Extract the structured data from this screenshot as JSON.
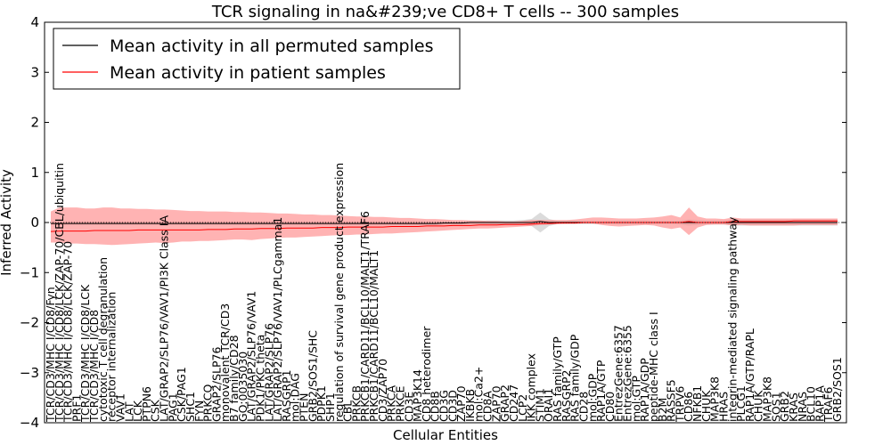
{
  "chart_data": {
    "type": "line",
    "title": "TCR signaling in na&#239;ve CD8+ T cells -- 300 samples",
    "xlabel": "Cellular Entities",
    "ylabel": "Inferred Activity",
    "ylim": [
      -4,
      4
    ],
    "yticks": [
      -4,
      -3,
      -2,
      -1,
      0,
      1,
      2,
      3,
      4
    ],
    "legend": {
      "location": "top-left",
      "entries": [
        {
          "label": "Mean activity in all permuted samples",
          "color": "#000000"
        },
        {
          "label": "Mean activity in patient samples",
          "color": "#ff0000"
        }
      ]
    },
    "categories": [
      "TCR/CD3/MHC I/CD8/Fyn",
      "TCR/CD3/MHC I/CD8/LCK/ZAP-70/CBL/ubiquitin",
      "TCR/CD3/MHC I/CD8/LCK/ZAP-70",
      "PRF1",
      "TCR/CD3/MHC I/CD8/LCK",
      "TCR/CD3/MHC I/CD8",
      "cytotoxic T cell degranulation",
      "receptor internalization",
      "VAV1",
      "LAT",
      "LCK",
      "PTPN6",
      "CSK",
      "LAT/GRAP2/SLP76/VAV1/PI3K Class IA",
      "PAG1",
      "CSK/PAG1",
      "SHC1",
      "FYN",
      "PRKCQ",
      "GRAP2/SLP76",
      "monovalent TCR/CD3",
      "B7 family/CD28",
      "GO:0035030",
      "LAT/GRAP2/SLP76/VAV1",
      "PDK1/PKC theta",
      "LAT/GRAP2/SLP76",
      "LAT/GRAP2/SLP76/VAV1/PLCgamma1",
      "RASGRP1",
      "mol:DAG",
      "PTEN",
      "GRB2/SOS1/SHC",
      "PDPK1",
      "SHP1",
      "regulation of survival gene product expression",
      "CBL",
      "PRKCB",
      "PRKCB1/CARD11/BCL10/MALT1/TRAF6",
      "PRKCB1/CARD11/BCL10/MALT1",
      "CD3/ZAP70",
      "PRKCA",
      "PRKCE",
      "CD3E",
      "MAP3K14",
      "CD8 heterodimer",
      "CD8B",
      "CD3G",
      "CD3D",
      "ZAP70",
      "IKBKB",
      "mol:Ca2+",
      "CD8A",
      "ZAP70",
      "GRAP2",
      "CD247",
      "LCP2",
      "IKK complex",
      "STIM1",
      "ORAI1",
      "RAS family/GTP",
      "RASGRP2",
      "RAS family/GDP",
      "CD28",
      "mol:GDP",
      "RAP1A/GTP",
      "CD80",
      "EntrezGene:6357",
      "EntrezGene:6355",
      "mol:GTP",
      "RAP1A/GDP",
      "peptide-MHC class I",
      "B2M",
      "RASSF5",
      "TRPV6",
      "CD86",
      "NFKB1",
      "CHUK",
      "MAP3K8",
      "HRAS",
      "integrin-mediated signaling pathway",
      "PLCG1",
      "RAP1A/GTP/RAPL",
      "CHUK",
      "MAP3K8",
      "SOS1",
      "GRB2",
      "KRAS",
      "NRAS",
      "BCL10",
      "RAP1A",
      "TRAF6",
      "GRB2/SOS1"
    ],
    "series": [
      {
        "name": "Mean activity in all permuted samples",
        "color": "#000000",
        "band_color": "#999999",
        "values": [
          -0.02,
          -0.02,
          -0.02,
          -0.02,
          -0.02,
          -0.02,
          -0.02,
          -0.02,
          -0.02,
          -0.02,
          -0.02,
          -0.02,
          -0.02,
          -0.02,
          -0.02,
          -0.02,
          -0.02,
          -0.02,
          -0.02,
          -0.02,
          -0.02,
          -0.02,
          -0.02,
          -0.02,
          -0.02,
          -0.02,
          -0.02,
          -0.02,
          -0.02,
          -0.02,
          -0.02,
          -0.02,
          -0.02,
          -0.02,
          -0.02,
          -0.02,
          -0.02,
          -0.02,
          -0.02,
          -0.02,
          -0.02,
          -0.02,
          -0.02,
          -0.02,
          -0.02,
          -0.01,
          -0.01,
          -0.01,
          0,
          0,
          0,
          0,
          0,
          0,
          0,
          0,
          0.02,
          0,
          0,
          0,
          0,
          0,
          0,
          0,
          0,
          0,
          0,
          0,
          0,
          0,
          0,
          0,
          0,
          0,
          0,
          0,
          0,
          0,
          0,
          0,
          0,
          0,
          0,
          0,
          0,
          0,
          0,
          0,
          0,
          0,
          0
        ],
        "lower": [
          -0.05,
          -0.05,
          -0.05,
          -0.05,
          -0.05,
          -0.05,
          -0.05,
          -0.05,
          -0.05,
          -0.05,
          -0.05,
          -0.05,
          -0.05,
          -0.05,
          -0.05,
          -0.05,
          -0.05,
          -0.05,
          -0.05,
          -0.05,
          -0.05,
          -0.05,
          -0.05,
          -0.05,
          -0.05,
          -0.05,
          -0.05,
          -0.05,
          -0.05,
          -0.05,
          -0.05,
          -0.05,
          -0.05,
          -0.05,
          -0.05,
          -0.05,
          -0.05,
          -0.05,
          -0.05,
          -0.05,
          -0.05,
          -0.05,
          -0.05,
          -0.05,
          -0.05,
          -0.04,
          -0.04,
          -0.04,
          -0.03,
          -0.03,
          -0.04,
          -0.04,
          -0.04,
          -0.04,
          -0.05,
          -0.07,
          -0.2,
          -0.07,
          -0.03,
          -0.03,
          -0.03,
          -0.03,
          -0.03,
          -0.03,
          -0.03,
          -0.04,
          -0.04,
          -0.04,
          -0.04,
          -0.03,
          -0.03,
          -0.03,
          -0.04,
          -0.06,
          -0.05,
          -0.04,
          -0.04,
          -0.04,
          -0.06,
          -0.06,
          -0.06,
          -0.06,
          -0.06,
          -0.06,
          -0.06,
          -0.06,
          -0.06,
          -0.06,
          -0.06,
          -0.06,
          -0.06
        ],
        "upper": [
          0.02,
          0.02,
          0.02,
          0.02,
          0.02,
          0.02,
          0.02,
          0.02,
          0.02,
          0.02,
          0.02,
          0.02,
          0.02,
          0.02,
          0.02,
          0.02,
          0.02,
          0.02,
          0.02,
          0.02,
          0.02,
          0.02,
          0.02,
          0.02,
          0.02,
          0.02,
          0.02,
          0.02,
          0.02,
          0.02,
          0.02,
          0.02,
          0.02,
          0.02,
          0.02,
          0.02,
          0.02,
          0.02,
          0.02,
          0.02,
          0.02,
          0.02,
          0.02,
          0.02,
          0.02,
          0.02,
          0.02,
          0.02,
          0.03,
          0.03,
          0.04,
          0.04,
          0.04,
          0.04,
          0.05,
          0.07,
          0.2,
          0.07,
          0.03,
          0.03,
          0.03,
          0.03,
          0.03,
          0.03,
          0.03,
          0.04,
          0.04,
          0.04,
          0.04,
          0.03,
          0.03,
          0.03,
          0.04,
          0.06,
          0.05,
          0.04,
          0.04,
          0.04,
          0.06,
          0.06,
          0.06,
          0.06,
          0.06,
          0.06,
          0.06,
          0.06,
          0.06,
          0.06,
          0.06,
          0.06,
          0.06
        ]
      },
      {
        "name": "Mean activity in patient samples",
        "color": "#ff0000",
        "band_color": "#ff8080",
        "values": [
          -0.18,
          -0.17,
          -0.17,
          -0.17,
          -0.17,
          -0.16,
          -0.16,
          -0.16,
          -0.16,
          -0.16,
          -0.15,
          -0.15,
          -0.15,
          -0.15,
          -0.15,
          -0.15,
          -0.15,
          -0.15,
          -0.14,
          -0.14,
          -0.14,
          -0.13,
          -0.13,
          -0.13,
          -0.12,
          -0.12,
          -0.12,
          -0.11,
          -0.11,
          -0.11,
          -0.11,
          -0.1,
          -0.1,
          -0.1,
          -0.09,
          -0.09,
          -0.09,
          -0.09,
          -0.09,
          -0.08,
          -0.08,
          -0.08,
          -0.08,
          -0.07,
          -0.07,
          -0.07,
          -0.06,
          -0.06,
          -0.06,
          -0.05,
          -0.05,
          -0.05,
          -0.04,
          -0.04,
          -0.04,
          -0.03,
          -0.02,
          -0.02,
          -0.01,
          -0.01,
          -0.01,
          0,
          0,
          0,
          0,
          0,
          0,
          0,
          0,
          0,
          0,
          0,
          0,
          0.02,
          0,
          0,
          0,
          0,
          0.02,
          0.02,
          0.02,
          0.02,
          0.02,
          0.02,
          0.02,
          0.03,
          0.03,
          0.03,
          0.03,
          0.03,
          0.03
        ],
        "lower": [
          -0.4,
          -0.4,
          -0.42,
          -0.42,
          -0.43,
          -0.43,
          -0.44,
          -0.45,
          -0.44,
          -0.43,
          -0.42,
          -0.41,
          -0.4,
          -0.41,
          -0.4,
          -0.38,
          -0.38,
          -0.37,
          -0.37,
          -0.36,
          -0.35,
          -0.34,
          -0.34,
          -0.35,
          -0.33,
          -0.32,
          -0.31,
          -0.3,
          -0.3,
          -0.29,
          -0.28,
          -0.27,
          -0.26,
          -0.25,
          -0.25,
          -0.24,
          -0.24,
          -0.23,
          -0.22,
          -0.22,
          -0.21,
          -0.2,
          -0.19,
          -0.18,
          -0.17,
          -0.16,
          -0.15,
          -0.14,
          -0.13,
          -0.12,
          -0.12,
          -0.11,
          -0.1,
          -0.09,
          -0.08,
          -0.07,
          -0.05,
          -0.04,
          -0.03,
          -0.02,
          -0.02,
          -0.02,
          -0.02,
          -0.05,
          -0.07,
          -0.08,
          -0.07,
          -0.06,
          -0.05,
          -0.06,
          -0.1,
          -0.13,
          -0.1,
          -0.25,
          -0.1,
          -0.05,
          -0.04,
          -0.04,
          -0.06,
          -0.05,
          -0.06,
          -0.06,
          -0.06,
          -0.06,
          -0.06,
          -0.06,
          -0.05,
          -0.05,
          -0.05,
          -0.05,
          -0.05
        ],
        "upper": [
          0.22,
          0.3,
          0.3,
          0.3,
          0.28,
          0.28,
          0.3,
          0.3,
          0.28,
          0.28,
          0.27,
          0.27,
          0.26,
          0.26,
          0.25,
          0.24,
          0.23,
          0.23,
          0.22,
          0.22,
          0.22,
          0.21,
          0.21,
          0.2,
          0.2,
          0.19,
          0.18,
          0.18,
          0.17,
          0.16,
          0.16,
          0.15,
          0.15,
          0.14,
          0.13,
          0.12,
          0.12,
          0.11,
          0.11,
          0.1,
          0.09,
          0.09,
          0.08,
          0.07,
          0.07,
          0.06,
          0.05,
          0.05,
          0.04,
          0.04,
          0.03,
          0.03,
          0.02,
          0.02,
          0.03,
          0.05,
          0.05,
          0.05,
          0.05,
          0.05,
          0.06,
          0.08,
          0.1,
          0.1,
          0.09,
          0.08,
          0.08,
          0.08,
          0.09,
          0.1,
          0.12,
          0.15,
          0.1,
          0.3,
          0.12,
          0.08,
          0.08,
          0.07,
          0.1,
          0.08,
          0.08,
          0.08,
          0.08,
          0.08,
          0.08,
          0.08,
          0.08,
          0.08,
          0.08,
          0.08,
          0.08
        ]
      }
    ]
  }
}
